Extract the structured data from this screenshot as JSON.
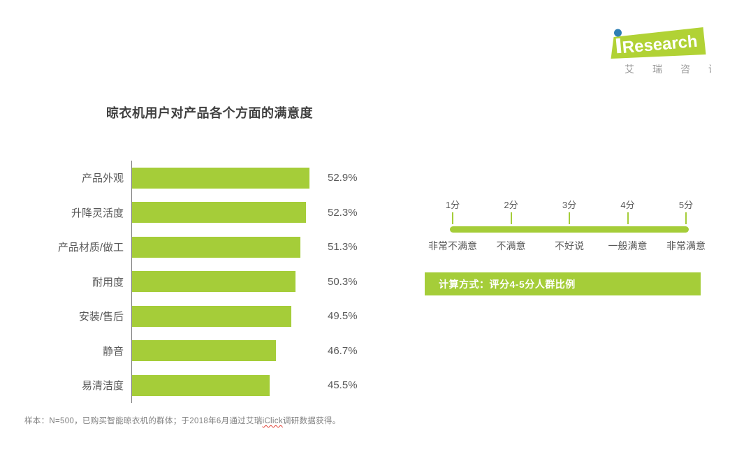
{
  "brand": {
    "logo_text": "Research",
    "logo_subtext": "艾瑞咨询",
    "logo_green": "#b1d235",
    "dot_blue": "#2e7fb5"
  },
  "chart_data": {
    "type": "bar",
    "orientation": "horizontal",
    "title": "晾衣机用户对产品各个方面的满意度",
    "categories": [
      "产品外观",
      "升降灵活度",
      "产品材质/做工",
      "耐用度",
      "安装/售后",
      "静音",
      "易清洁度"
    ],
    "values": [
      52.9,
      52.3,
      51.3,
      50.3,
      49.5,
      46.7,
      45.5
    ],
    "value_labels": [
      "52.9%",
      "52.3%",
      "51.3%",
      "50.3%",
      "49.5%",
      "46.7%",
      "45.5%"
    ],
    "xlim": [
      20,
      55
    ],
    "bar_color": "#a5cd39",
    "grid": false,
    "legend_position": "none"
  },
  "scale_legend": {
    "scores": [
      "1分",
      "2分",
      "3分",
      "4分",
      "5分"
    ],
    "descriptions": [
      "非常不满意",
      "不满意",
      "不好说",
      "一般满意",
      "非常满意"
    ],
    "line_color": "#a5cd39"
  },
  "method_box": {
    "text": "计算方式：评分4-5分人群比例",
    "bg": "#a5cd39"
  },
  "footnote": {
    "prefix": "样本：N=500，已购买智能晾衣机的群体；于2018年6月通过艾瑞",
    "spellcheck_word": "iClick",
    "suffix": "调研数据获得。"
  }
}
